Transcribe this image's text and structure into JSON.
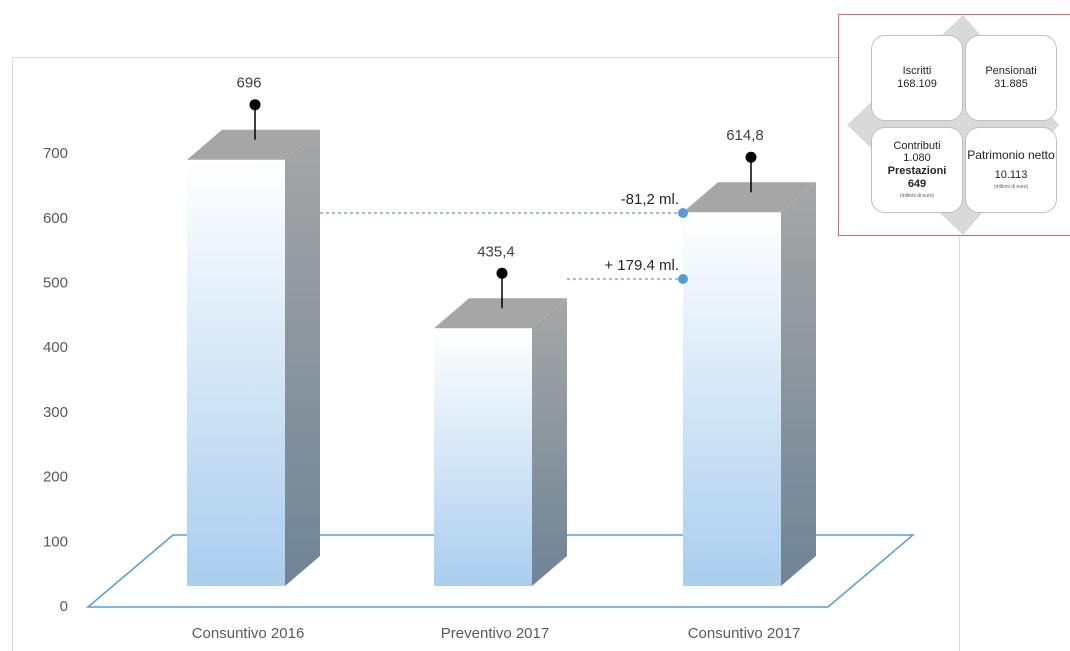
{
  "chart_data": {
    "type": "bar",
    "categories": [
      "Consuntivo 2016",
      "Preventivo 2017",
      "Consuntivo 2017"
    ],
    "values": [
      696,
      435.4,
      614.8
    ],
    "value_labels": [
      "696",
      "435,4",
      "614,8"
    ],
    "ylim": [
      0,
      700
    ],
    "yticks": [
      0,
      100,
      200,
      300,
      400,
      500,
      600,
      700
    ],
    "annotations": [
      {
        "text": "-81,2 ml.",
        "from_category": "Consuntivo 2016",
        "to_category": "Consuntivo 2017"
      },
      {
        "text": "+ 179.4 ml.",
        "from_category": "Preventivo 2017",
        "to_category": "Consuntivo 2017"
      }
    ],
    "colors": {
      "bar_front_top": "#ffffff",
      "bar_front_bottom": "#a9cdee",
      "bar_side": "#6f8496",
      "floor": "#5b9bd5",
      "dot": "#5b9bd5"
    }
  },
  "info_panel": {
    "cards": [
      {
        "title": "Iscritti",
        "value": "168.109"
      },
      {
        "title": "Pensionati",
        "value": "31.885"
      },
      {
        "title": "Contributi",
        "value": "1.080",
        "title2": "Prestazioni",
        "value2": "649",
        "note": "(milioni di euro)"
      },
      {
        "title": "Patrimonio netto",
        "value": "10.113",
        "note": "(milioni di euro)"
      }
    ]
  }
}
